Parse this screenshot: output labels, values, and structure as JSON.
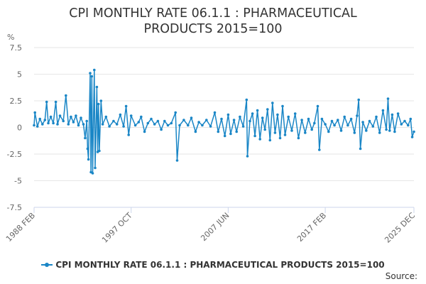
{
  "colors": {
    "series": "#1a86c6",
    "grid": "#e6e6e6",
    "axis": "#ccd6eb",
    "text": "#666666"
  },
  "legend": {
    "label": "CPI MONTHLY RATE 06.1.1 : PHARMACEUTICAL PRODUCTS 2015=100"
  },
  "source": {
    "label": "Source:"
  },
  "chart_data": {
    "type": "line",
    "title_lines": [
      "CPI MONTHLY RATE 06.1.1 : PHARMACEUTICAL",
      "PRODUCTS 2015=100"
    ],
    "ylabel": "%",
    "xlabel": "",
    "ylim": [
      -7.5,
      7.5
    ],
    "y_ticks": [
      "7.5",
      "5",
      "2.5",
      "0",
      "-2.5",
      "-5",
      "-7.5"
    ],
    "y_tick_values": [
      7.5,
      5,
      2.5,
      0,
      -2.5,
      -5,
      -7.5
    ],
    "x_tick_labels": [
      "1988 FEB",
      "1997 OCT",
      "2007 JUN",
      "2017 FEB",
      "2025 DEC"
    ],
    "x_tick_dates": [
      "1988-02",
      "1997-10",
      "2007-06",
      "2017-02",
      "2025-12"
    ],
    "x_range": [
      "1988-02",
      "2025-12"
    ],
    "grid": true,
    "legend_position": "bottom",
    "series": [
      {
        "name": "CPI MONTHLY RATE 06.1.1 : PHARMACEUTICAL PRODUCTS 2015=100",
        "points": [
          [
            "1988-02",
            0.2
          ],
          [
            "1988-03",
            1.4
          ],
          [
            "1988-06",
            0.1
          ],
          [
            "1988-09",
            0.8
          ],
          [
            "1988-12",
            0.3
          ],
          [
            "1989-03",
            0.7
          ],
          [
            "1989-05",
            2.4
          ],
          [
            "1989-07",
            0.4
          ],
          [
            "1989-10",
            1.0
          ],
          [
            "1990-01",
            0.4
          ],
          [
            "1990-04",
            2.4
          ],
          [
            "1990-06",
            0.3
          ],
          [
            "1990-09",
            1.1
          ],
          [
            "1991-01",
            0.6
          ],
          [
            "1991-04",
            3.0
          ],
          [
            "1991-07",
            0.3
          ],
          [
            "1991-10",
            1.0
          ],
          [
            "1992-01",
            0.5
          ],
          [
            "1992-04",
            1.1
          ],
          [
            "1992-07",
            0.2
          ],
          [
            "1992-10",
            0.9
          ],
          [
            "1993-01",
            0.3
          ],
          [
            "1993-03",
            -1.0
          ],
          [
            "1993-05",
            0.6
          ],
          [
            "1993-06",
            -2.0
          ],
          [
            "1993-07",
            -3.0
          ],
          [
            "1993-09",
            5.1
          ],
          [
            "1993-10",
            -4.2
          ],
          [
            "1993-11",
            4.8
          ],
          [
            "1993-12",
            -4.3
          ],
          [
            "1994-02",
            5.4
          ],
          [
            "1994-03",
            -3.8
          ],
          [
            "1994-05",
            3.8
          ],
          [
            "1994-06",
            -2.3
          ],
          [
            "1994-07",
            2.2
          ],
          [
            "1994-08",
            -2.2
          ],
          [
            "1994-10",
            2.5
          ],
          [
            "1994-12",
            0.3
          ],
          [
            "1995-04",
            1.0
          ],
          [
            "1995-08",
            0.1
          ],
          [
            "1996-01",
            0.6
          ],
          [
            "1996-05",
            0.3
          ],
          [
            "1996-09",
            1.2
          ],
          [
            "1997-01",
            0.1
          ],
          [
            "1997-04",
            2.0
          ],
          [
            "1997-07",
            -0.7
          ],
          [
            "1997-10",
            1.1
          ],
          [
            "1998-03",
            0.2
          ],
          [
            "1998-07",
            0.5
          ],
          [
            "1998-10",
            1.0
          ],
          [
            "1999-02",
            -0.4
          ],
          [
            "1999-06",
            0.4
          ],
          [
            "1999-10",
            0.8
          ],
          [
            "2000-02",
            0.3
          ],
          [
            "2000-06",
            0.6
          ],
          [
            "2000-10",
            -0.2
          ],
          [
            "2001-02",
            0.6
          ],
          [
            "2001-06",
            0.2
          ],
          [
            "2001-10",
            0.4
          ],
          [
            "2002-03",
            1.4
          ],
          [
            "2002-05",
            -3.1
          ],
          [
            "2002-08",
            0.2
          ],
          [
            "2003-01",
            0.7
          ],
          [
            "2003-06",
            0.2
          ],
          [
            "2003-10",
            0.9
          ],
          [
            "2004-03",
            -0.4
          ],
          [
            "2004-07",
            0.5
          ],
          [
            "2004-11",
            0.2
          ],
          [
            "2005-04",
            0.7
          ],
          [
            "2005-09",
            0.1
          ],
          [
            "2006-02",
            1.4
          ],
          [
            "2006-06",
            -0.4
          ],
          [
            "2006-10",
            0.8
          ],
          [
            "2007-02",
            -0.8
          ],
          [
            "2007-06",
            1.2
          ],
          [
            "2007-09",
            -0.6
          ],
          [
            "2008-01",
            0.7
          ],
          [
            "2008-04",
            -0.4
          ],
          [
            "2008-08",
            1.0
          ],
          [
            "2008-12",
            0.1
          ],
          [
            "2009-04",
            2.6
          ],
          [
            "2009-05",
            -2.7
          ],
          [
            "2009-08",
            0.6
          ],
          [
            "2009-11",
            1.3
          ],
          [
            "2010-02",
            -0.8
          ],
          [
            "2010-05",
            1.6
          ],
          [
            "2010-08",
            -1.1
          ],
          [
            "2010-11",
            0.9
          ],
          [
            "2011-02",
            -0.2
          ],
          [
            "2011-05",
            1.7
          ],
          [
            "2011-08",
            -1.2
          ],
          [
            "2011-11",
            2.3
          ],
          [
            "2012-02",
            -0.5
          ],
          [
            "2012-05",
            1.2
          ],
          [
            "2012-08",
            -1.0
          ],
          [
            "2012-11",
            2.0
          ],
          [
            "2013-02",
            -0.7
          ],
          [
            "2013-06",
            1.0
          ],
          [
            "2013-10",
            -0.3
          ],
          [
            "2014-02",
            1.3
          ],
          [
            "2014-06",
            -1.0
          ],
          [
            "2014-10",
            0.7
          ],
          [
            "2015-02",
            -0.5
          ],
          [
            "2015-06",
            0.8
          ],
          [
            "2015-10",
            -0.2
          ],
          [
            "2016-01",
            0.4
          ],
          [
            "2016-05",
            2.0
          ],
          [
            "2016-07",
            -2.1
          ],
          [
            "2016-10",
            0.8
          ],
          [
            "2017-02",
            0.3
          ],
          [
            "2017-06",
            -0.4
          ],
          [
            "2017-10",
            0.6
          ],
          [
            "2018-01",
            0.2
          ],
          [
            "2018-05",
            0.7
          ],
          [
            "2018-09",
            -0.3
          ],
          [
            "2019-01",
            1.0
          ],
          [
            "2019-05",
            0.2
          ],
          [
            "2019-09",
            0.8
          ],
          [
            "2020-01",
            -0.5
          ],
          [
            "2020-04",
            1.1
          ],
          [
            "2020-06",
            2.6
          ],
          [
            "2020-08",
            -2.0
          ],
          [
            "2020-11",
            0.5
          ],
          [
            "2021-03",
            -0.3
          ],
          [
            "2021-07",
            0.6
          ],
          [
            "2021-11",
            0.1
          ],
          [
            "2022-03",
            1.0
          ],
          [
            "2022-07",
            -0.5
          ],
          [
            "2022-11",
            1.6
          ],
          [
            "2023-03",
            -0.2
          ],
          [
            "2023-05",
            2.7
          ],
          [
            "2023-07",
            -0.3
          ],
          [
            "2023-10",
            1.2
          ],
          [
            "2024-01",
            -0.4
          ],
          [
            "2024-05",
            1.3
          ],
          [
            "2024-09",
            0.3
          ],
          [
            "2025-01",
            0.6
          ],
          [
            "2025-05",
            0.2
          ],
          [
            "2025-08",
            0.8
          ],
          [
            "2025-10",
            -0.9
          ],
          [
            "2025-12",
            -0.4
          ]
        ]
      }
    ]
  }
}
